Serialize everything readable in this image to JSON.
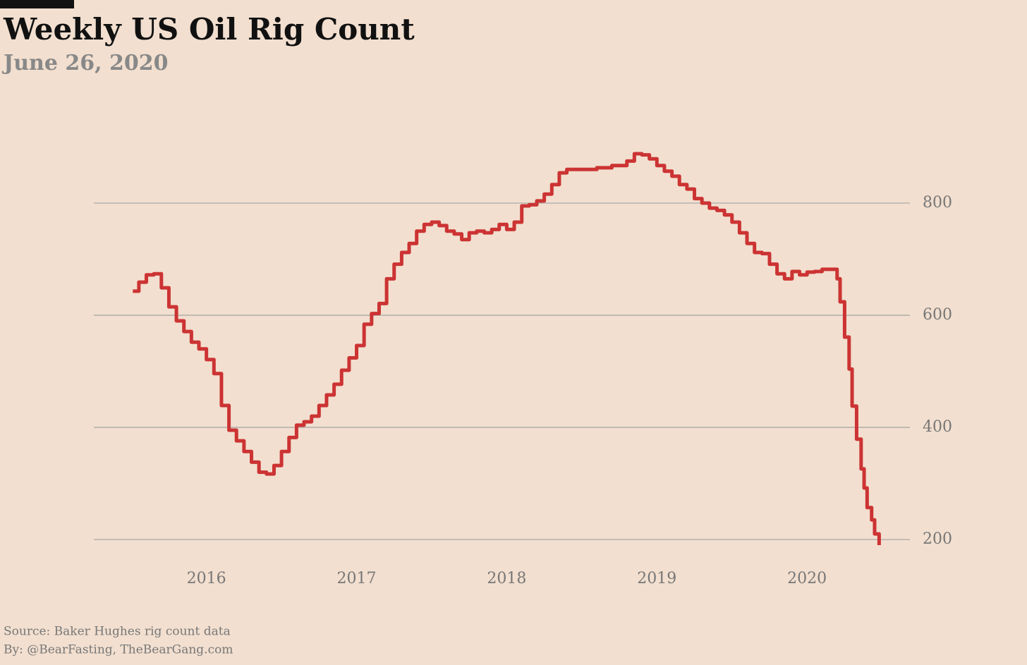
{
  "chart_data": {
    "type": "step-line",
    "title": "Weekly US Oil Rig Count",
    "subtitle": "June 26, 2020",
    "source": "Source: Baker Hughes rig count data",
    "byline": "By: @BearFasting, TheBearGang.com",
    "xlim": [
      2015.25,
      2020.685
    ],
    "xticks": [
      2016,
      2017,
      2018,
      2019,
      2020
    ],
    "ylim": [
      180,
      900
    ],
    "yticks": [
      200,
      400,
      600,
      800
    ],
    "grid": true,
    "series": [
      {
        "color": "#cc3333",
        "x": [
          2015.51,
          2015.55,
          2015.6,
          2015.65,
          2015.7,
          2015.75,
          2015.8,
          2015.85,
          2015.9,
          2015.95,
          2016.0,
          2016.05,
          2016.1,
          2016.15,
          2016.2,
          2016.25,
          2016.3,
          2016.35,
          2016.4,
          2016.45,
          2016.5,
          2016.55,
          2016.6,
          2016.65,
          2016.7,
          2016.75,
          2016.8,
          2016.85,
          2016.9,
          2016.95,
          2017.0,
          2017.05,
          2017.1,
          2017.15,
          2017.2,
          2017.25,
          2017.3,
          2017.35,
          2017.4,
          2017.45,
          2017.5,
          2017.55,
          2017.6,
          2017.65,
          2017.7,
          2017.75,
          2017.8,
          2017.85,
          2017.9,
          2017.95,
          2018.0,
          2018.05,
          2018.1,
          2018.15,
          2018.2,
          2018.25,
          2018.3,
          2018.35,
          2018.4,
          2018.5,
          2018.6,
          2018.7,
          2018.8,
          2018.85,
          2018.9,
          2018.95,
          2019.0,
          2019.05,
          2019.1,
          2019.15,
          2019.2,
          2019.25,
          2019.3,
          2019.35,
          2019.4,
          2019.45,
          2019.5,
          2019.55,
          2019.6,
          2019.65,
          2019.7,
          2019.75,
          2019.8,
          2019.85,
          2019.9,
          2019.95,
          2020.0,
          2020.05,
          2020.1,
          2020.2,
          2020.22,
          2020.25,
          2020.28,
          2020.3,
          2020.33,
          2020.36,
          2020.38,
          2020.4,
          2020.43,
          2020.45,
          2020.48
        ],
        "values": [
          643,
          659,
          672,
          674,
          649,
          615,
          590,
          571,
          552,
          540,
          521,
          496,
          439,
          395,
          376,
          357,
          338,
          320,
          317,
          332,
          357,
          382,
          404,
          410,
          420,
          439,
          458,
          477,
          502,
          524,
          546,
          584,
          603,
          621,
          665,
          691,
          712,
          728,
          750,
          762,
          766,
          760,
          750,
          745,
          735,
          747,
          750,
          747,
          753,
          762,
          753,
          766,
          795,
          797,
          804,
          816,
          833,
          854,
          860,
          860,
          863,
          867,
          875,
          888,
          886,
          879,
          867,
          857,
          848,
          833,
          825,
          808,
          800,
          791,
          787,
          779,
          766,
          747,
          728,
          712,
          710,
          691,
          674,
          665,
          678,
          672,
          677,
          678,
          682,
          665,
          624,
          561,
          504,
          438,
          379,
          326,
          292,
          257,
          235,
          210,
          190
        ]
      }
    ]
  }
}
